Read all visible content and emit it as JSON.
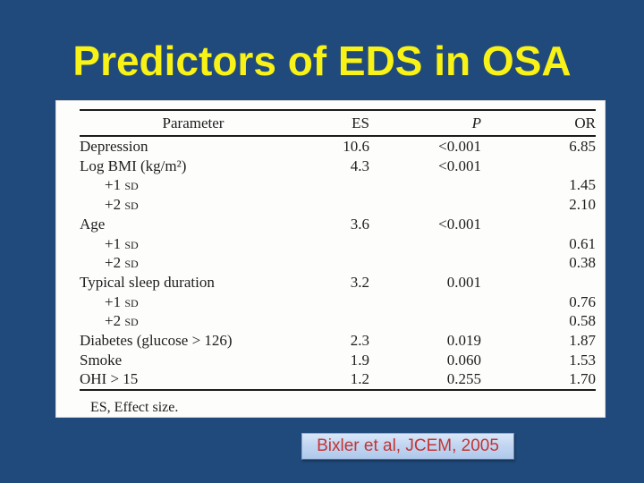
{
  "slide": {
    "title": "Predictors of EDS in OSA",
    "background_color": "#204A7C",
    "title_color": "#F8F216"
  },
  "table": {
    "columns": [
      "Parameter",
      "ES",
      "P",
      "OR"
    ],
    "rows": [
      {
        "param": "Depression",
        "es": "10.6",
        "p": "<0.001",
        "or": "6.85",
        "indent": false
      },
      {
        "param": "Log BMI (kg/m²)",
        "es": "4.3",
        "p": "<0.001",
        "or": "",
        "indent": false
      },
      {
        "param": "+1 sd",
        "es": "",
        "p": "",
        "or": "1.45",
        "indent": true
      },
      {
        "param": "+2 sd",
        "es": "",
        "p": "",
        "or": "2.10",
        "indent": true
      },
      {
        "param": "Age",
        "es": "3.6",
        "p": "<0.001",
        "or": "",
        "indent": false
      },
      {
        "param": "+1 sd",
        "es": "",
        "p": "",
        "or": "0.61",
        "indent": true
      },
      {
        "param": "+2 sd",
        "es": "",
        "p": "",
        "or": "0.38",
        "indent": true
      },
      {
        "param": "Typical sleep duration",
        "es": "3.2",
        "p": "0.001",
        "or": "",
        "indent": false
      },
      {
        "param": "+1 sd",
        "es": "",
        "p": "",
        "or": "0.76",
        "indent": true
      },
      {
        "param": "+2 sd",
        "es": "",
        "p": "",
        "or": "0.58",
        "indent": true
      },
      {
        "param": "Diabetes (glucose > 126)",
        "es": "2.3",
        "p": "0.019",
        "or": "1.87",
        "indent": false
      },
      {
        "param": "Smoke",
        "es": "1.9",
        "p": "0.060",
        "or": "1.53",
        "indent": false
      },
      {
        "param": "OHI > 15",
        "es": "1.2",
        "p": "0.255",
        "or": "1.70",
        "indent": false
      }
    ],
    "footnote": "ES, Effect size."
  },
  "citation": {
    "text": "Bixler et al, JCEM, 2005",
    "text_color": "#C23434"
  }
}
